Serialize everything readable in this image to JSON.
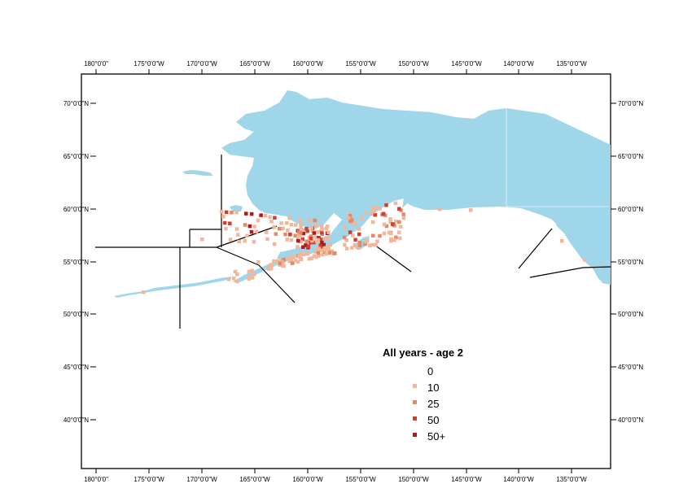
{
  "map": {
    "lon_labels": [
      "180°0'0\"",
      "175°0'0\"W",
      "170°0'0\"W",
      "165°0'0\"W",
      "160°0'0\"W",
      "155°0'0\"W",
      "150°0'0\"W",
      "145°0'0\"W",
      "140°0'0\"W",
      "135°0'0\"W"
    ],
    "lat_labels": [
      "70°0'0\"N",
      "65°0'0\"N",
      "60°0'0\"N",
      "55°0'0\"N",
      "50°0'0\"N",
      "45°0'0\"N",
      "40°0'0\"N"
    ],
    "colors": {
      "land": "#9fd6ea",
      "frame": "#000000",
      "boundary": "#000000",
      "class_10": "#f2b79a",
      "class_25": "#e08a6a",
      "class_50": "#cf4030",
      "class_50plus": "#b01a1a"
    }
  },
  "legend": {
    "title": "All years - age 2",
    "classes": [
      {
        "label": "0",
        "color": ""
      },
      {
        "label": "10",
        "color": "#f2b79a"
      },
      {
        "label": "25",
        "color": "#e08a6a"
      },
      {
        "label": "50",
        "color": "#cf4030"
      },
      {
        "label": "50+",
        "color": "#b01a1a"
      }
    ]
  }
}
